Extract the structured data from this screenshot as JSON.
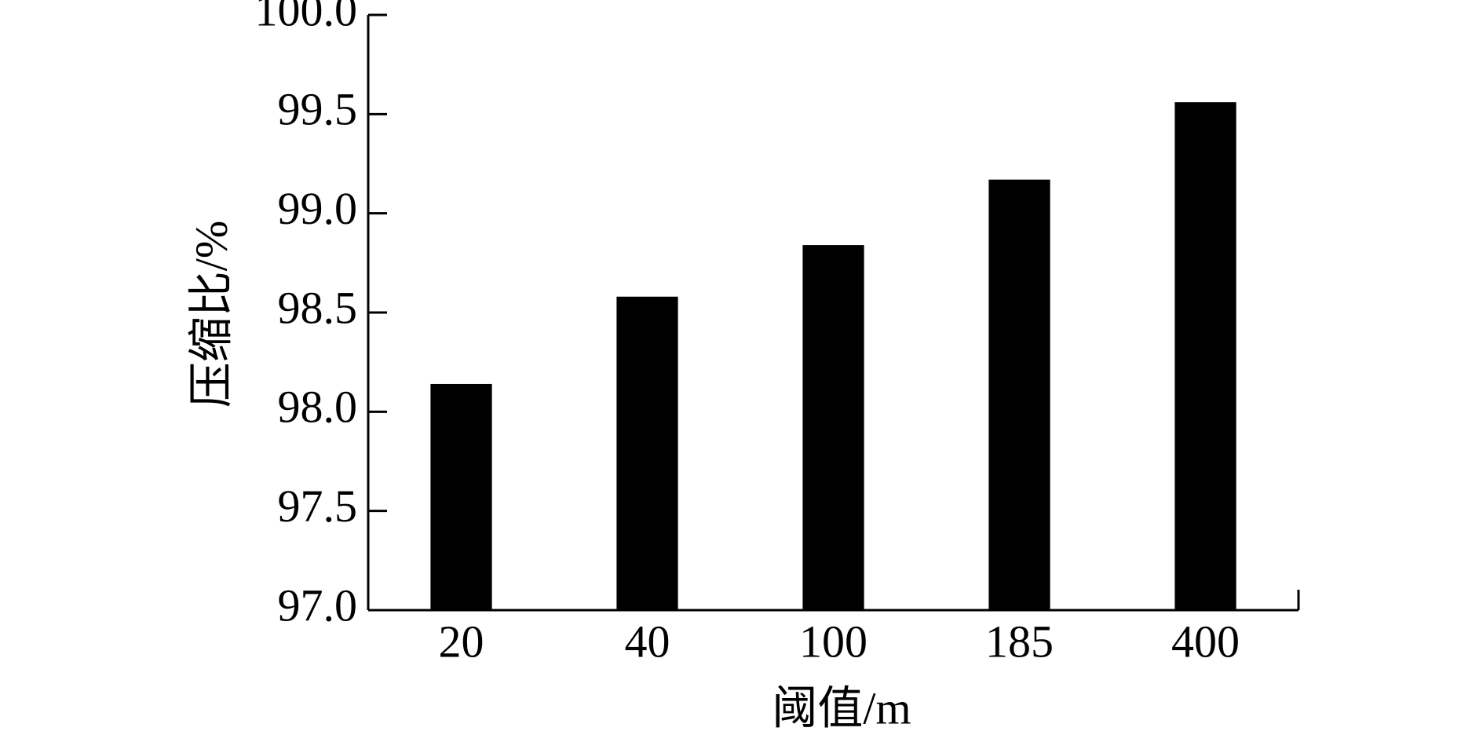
{
  "chart_data": {
    "type": "bar",
    "x_label": "阈值/m",
    "y_label": "压缩比/%",
    "categories": [
      "20",
      "40",
      "100",
      "185",
      "400"
    ],
    "values": [
      98.14,
      98.58,
      98.84,
      99.17,
      99.56
    ],
    "color": "#000000",
    "ylim": [
      97,
      100
    ],
    "yticks": [
      {
        "value": 97,
        "label": "97.0"
      },
      97.5,
      {
        "value": 98,
        "label": "98.0"
      },
      98.5,
      {
        "value": 99,
        "label": "99.0"
      },
      99.5,
      {
        "value": 100,
        "label": "100.0"
      }
    ],
    "grid": false
  }
}
